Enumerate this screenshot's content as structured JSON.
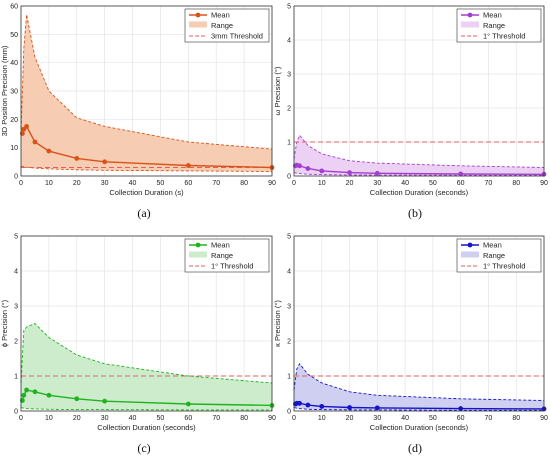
{
  "colors": {
    "orange": "#d95319",
    "orange_fill": "#f6cdb2",
    "purple": "#a33fd0",
    "purple_fill": "#ecd1f5",
    "green": "#1fb41f",
    "green_fill": "#cdeccb",
    "blue": "#1414c8",
    "blue_fill": "#cfcff2",
    "threshold": "#e06060",
    "grid": "#e4e4e4"
  },
  "chart_data": [
    {
      "panel": "(a)",
      "type": "line",
      "xlabel": "Collection Duration (s)",
      "ylabel": "3D Position Precision (mm)",
      "xlim": [
        0,
        90
      ],
      "ylim": [
        0,
        60
      ],
      "xticks": [
        0,
        10,
        20,
        30,
        40,
        50,
        60,
        70,
        80,
        90
      ],
      "yticks": [
        0,
        10,
        20,
        30,
        40,
        50,
        60
      ],
      "grid": true,
      "legend_position": "top-right",
      "legend": [
        "Mean",
        "Range",
        "3mm Threshold"
      ],
      "threshold": 3,
      "series": [
        {
          "name": "Mean",
          "x": [
            0.5,
            1,
            2,
            5,
            10,
            20,
            30,
            60,
            90
          ],
          "y": [
            15.0,
            16.5,
            17.5,
            12.0,
            8.8,
            6.2,
            5.0,
            3.7,
            3.0
          ]
        },
        {
          "name": "Range upper",
          "x": [
            0,
            1,
            2,
            5,
            10,
            20,
            30,
            60,
            90
          ],
          "y": [
            15,
            45,
            57,
            42,
            30,
            20.5,
            17.5,
            12,
            9.5
          ]
        },
        {
          "name": "Range lower",
          "x": [
            0,
            1,
            2,
            5,
            10,
            20,
            30,
            60,
            90
          ],
          "y": [
            3.5,
            3.3,
            3.1,
            2.8,
            2.5,
            2.2,
            2.0,
            1.8,
            1.6
          ]
        }
      ]
    },
    {
      "panel": "(b)",
      "type": "line",
      "xlabel": "Collection Duration (seconds)",
      "ylabel": "ω Precision (°)",
      "xlim": [
        0,
        90
      ],
      "ylim": [
        0,
        5
      ],
      "xticks": [
        0,
        10,
        20,
        30,
        40,
        50,
        60,
        70,
        80,
        90
      ],
      "yticks": [
        0,
        1,
        2,
        3,
        4,
        5
      ],
      "grid": true,
      "legend_position": "top-right",
      "legend": [
        "Mean",
        "Range",
        "1° Threshold"
      ],
      "threshold": 1,
      "series": [
        {
          "name": "Mean",
          "x": [
            0.5,
            1,
            2,
            5,
            10,
            20,
            30,
            60,
            90
          ],
          "y": [
            0.3,
            0.32,
            0.3,
            0.22,
            0.15,
            0.1,
            0.08,
            0.06,
            0.05
          ]
        },
        {
          "name": "Range upper",
          "x": [
            0,
            1,
            2,
            5,
            10,
            20,
            30,
            60,
            90
          ],
          "y": [
            0.5,
            1.0,
            1.2,
            0.9,
            0.65,
            0.45,
            0.38,
            0.3,
            0.25
          ]
        },
        {
          "name": "Range lower",
          "x": [
            0,
            1,
            2,
            5,
            10,
            20,
            30,
            60,
            90
          ],
          "y": [
            0.1,
            0.08,
            0.07,
            0.05,
            0.04,
            0.03,
            0.03,
            0.02,
            0.02
          ]
        }
      ]
    },
    {
      "panel": "(c)",
      "type": "line",
      "xlabel": "Collection Duration (seconds)",
      "ylabel": "ϕ Precision (°)",
      "xlim": [
        0,
        90
      ],
      "ylim": [
        0,
        5
      ],
      "xticks": [
        0,
        10,
        20,
        30,
        40,
        50,
        60,
        70,
        80,
        90
      ],
      "yticks": [
        0,
        1,
        2,
        3,
        4,
        5
      ],
      "grid": true,
      "legend_position": "top-right",
      "legend": [
        "Mean",
        "Range",
        "1° Threshold"
      ],
      "threshold": 1,
      "series": [
        {
          "name": "Mean",
          "x": [
            0.5,
            1,
            2,
            5,
            10,
            20,
            30,
            60,
            90
          ],
          "y": [
            0.3,
            0.45,
            0.6,
            0.55,
            0.45,
            0.35,
            0.28,
            0.2,
            0.16
          ]
        },
        {
          "name": "Range upper",
          "x": [
            0,
            1,
            2,
            5,
            10,
            20,
            30,
            60,
            90
          ],
          "y": [
            0.8,
            2.3,
            2.4,
            2.5,
            2.1,
            1.6,
            1.35,
            1.0,
            0.8
          ]
        },
        {
          "name": "Range lower",
          "x": [
            0,
            1,
            2,
            5,
            10,
            20,
            30,
            60,
            90
          ],
          "y": [
            0.1,
            0.08,
            0.07,
            0.06,
            0.05,
            0.04,
            0.04,
            0.03,
            0.03
          ]
        }
      ]
    },
    {
      "panel": "(d)",
      "type": "line",
      "xlabel": "Collection Duration (seconds)",
      "ylabel": "κ Precision (°)",
      "xlim": [
        0,
        90
      ],
      "ylim": [
        0,
        5
      ],
      "xticks": [
        0,
        10,
        20,
        30,
        40,
        50,
        60,
        70,
        80,
        90
      ],
      "yticks": [
        0,
        1,
        2,
        3,
        4,
        5
      ],
      "grid": true,
      "legend_position": "top-right",
      "legend": [
        "Mean",
        "Range",
        "1° Threshold"
      ],
      "threshold": 1,
      "series": [
        {
          "name": "Mean",
          "x": [
            0.5,
            1,
            2,
            5,
            10,
            20,
            30,
            60,
            90
          ],
          "y": [
            0.2,
            0.22,
            0.22,
            0.17,
            0.13,
            0.1,
            0.09,
            0.07,
            0.06
          ]
        },
        {
          "name": "Range upper",
          "x": [
            0,
            1,
            2,
            5,
            10,
            20,
            30,
            60,
            90
          ],
          "y": [
            0.6,
            1.2,
            1.35,
            1.05,
            0.8,
            0.55,
            0.45,
            0.35,
            0.3
          ]
        },
        {
          "name": "Range lower",
          "x": [
            0,
            1,
            2,
            5,
            10,
            20,
            30,
            60,
            90
          ],
          "y": [
            0.1,
            0.08,
            0.07,
            0.05,
            0.04,
            0.03,
            0.03,
            0.02,
            0.02
          ]
        }
      ]
    }
  ]
}
